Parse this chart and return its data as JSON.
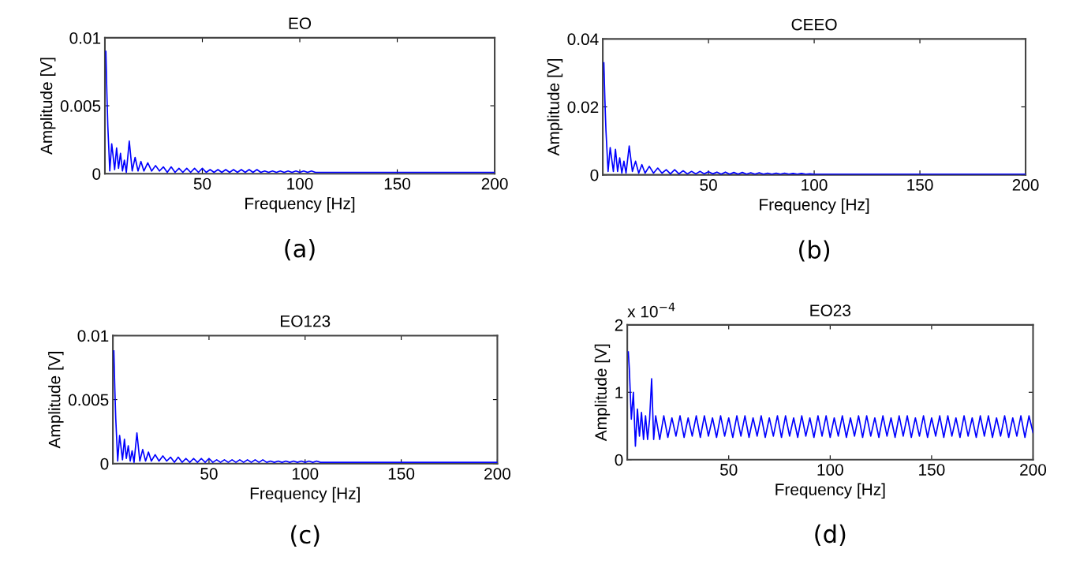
{
  "chart_data": [
    {
      "type": "line",
      "title": "EO",
      "xlabel": "Frequency [Hz]",
      "ylabel": "Amplitude [V]",
      "xlim": [
        0,
        200
      ],
      "xticks": [
        50,
        100,
        150,
        200
      ],
      "ylim": [
        0,
        0.01
      ],
      "yticks": [
        0,
        0.005,
        0.01
      ],
      "grid": false,
      "annotations": [
        "(a)"
      ],
      "series": [
        {
          "color": "#0000ff",
          "x": [
            0.5,
            1,
            1.5,
            2.5,
            3.5,
            5,
            6,
            7,
            8,
            9,
            10,
            11,
            12.5,
            14,
            15.5,
            17,
            18.5,
            20,
            22,
            24,
            26,
            28,
            30,
            32,
            34,
            36,
            38,
            40,
            42,
            44,
            46,
            48,
            50,
            52,
            54,
            56,
            58,
            60,
            62,
            64,
            66,
            68,
            70,
            72,
            74,
            76,
            78,
            80,
            82,
            84,
            86,
            88,
            90,
            92,
            94,
            96,
            98,
            100,
            102,
            104,
            106,
            108,
            110,
            120,
            150,
            200
          ],
          "values": [
            0.009,
            0.006,
            0.0035,
            0.0002,
            0.0022,
            0.0003,
            0.0019,
            0.0004,
            0.0015,
            0.0002,
            0.001,
            0.0001,
            0.0024,
            0.0002,
            0.0012,
            0.0002,
            0.0009,
            0.0002,
            0.0008,
            0.0002,
            0.0006,
            0.0002,
            0.0005,
            0.0001,
            0.0005,
            0.0001,
            0.0004,
            0.0001,
            0.0004,
            0.0001,
            0.0004,
            0.0001,
            0.0004,
            0.0001,
            0.0003,
            0.0001,
            0.0003,
            0.0001,
            0.0003,
            0.0001,
            0.0003,
            0.0001,
            0.0003,
            0.0001,
            0.0003,
            0.0001,
            0.0003,
            0.0001,
            0.0002,
            0.0001,
            0.0002,
            0.0001,
            0.0002,
            0.0001,
            0.0002,
            0.0001,
            0.0002,
            0.0001,
            0.0002,
            0.0001,
            0.0002,
            0.0001,
            0.0001,
            0.0001,
            0.0001,
            0.0001
          ]
        }
      ]
    },
    {
      "type": "line",
      "title": "CEEO",
      "xlabel": "Frequency [Hz]",
      "ylabel": "Amplitude [V]",
      "xlim": [
        0,
        200
      ],
      "xticks": [
        50,
        100,
        150,
        200
      ],
      "ylim": [
        0,
        0.04
      ],
      "yticks": [
        0,
        0.02,
        0.04
      ],
      "grid": false,
      "annotations": [
        "(b)"
      ],
      "series": [
        {
          "color": "#0000ff",
          "x": [
            0.5,
            1,
            1.5,
            2.5,
            3.5,
            5,
            6,
            7,
            8,
            9,
            10,
            11,
            12.5,
            14,
            15.5,
            17,
            18.5,
            20,
            22,
            24,
            26,
            28,
            30,
            32,
            34,
            36,
            38,
            40,
            42,
            44,
            46,
            48,
            50,
            52,
            54,
            56,
            58,
            60,
            62,
            64,
            66,
            68,
            70,
            72,
            74,
            76,
            78,
            80,
            82,
            84,
            86,
            88,
            90,
            92,
            94,
            96,
            98,
            100,
            120,
            150,
            200
          ],
          "values": [
            0.033,
            0.022,
            0.013,
            0.001,
            0.008,
            0.001,
            0.0075,
            0.001,
            0.005,
            0.0005,
            0.004,
            0.0005,
            0.0085,
            0.001,
            0.004,
            0.0005,
            0.003,
            0.0005,
            0.0025,
            0.0005,
            0.002,
            0.0005,
            0.0015,
            0.0003,
            0.0015,
            0.0003,
            0.0012,
            0.0003,
            0.001,
            0.0003,
            0.001,
            0.0003,
            0.0009,
            0.0003,
            0.0008,
            0.0002,
            0.0008,
            0.0002,
            0.0007,
            0.0002,
            0.0007,
            0.0002,
            0.0006,
            0.0002,
            0.0006,
            0.0002,
            0.0005,
            0.0002,
            0.0005,
            0.0002,
            0.0005,
            0.0002,
            0.0004,
            0.0002,
            0.0004,
            0.0002,
            0.0003,
            0.0002,
            0.0002,
            0.0002,
            0.0002
          ]
        }
      ]
    },
    {
      "type": "line",
      "title": "EO123",
      "xlabel": "Frequency [Hz]",
      "ylabel": "Amplitude [V]",
      "xlim": [
        0,
        200
      ],
      "xticks": [
        50,
        100,
        150,
        200
      ],
      "ylim": [
        0,
        0.01
      ],
      "yticks": [
        0,
        0.005,
        0.01
      ],
      "grid": false,
      "annotations": [
        "(c)"
      ],
      "series": [
        {
          "color": "#0000ff",
          "x": [
            0.5,
            1,
            1.5,
            2.5,
            3.5,
            5,
            6,
            7,
            8,
            9,
            10,
            11,
            12.5,
            14,
            15.5,
            17,
            18.5,
            20,
            22,
            24,
            26,
            28,
            30,
            32,
            34,
            36,
            38,
            40,
            42,
            44,
            46,
            48,
            50,
            52,
            54,
            56,
            58,
            60,
            62,
            64,
            66,
            68,
            70,
            72,
            74,
            76,
            78,
            80,
            82,
            84,
            86,
            88,
            90,
            92,
            94,
            96,
            98,
            100,
            102,
            104,
            106,
            108,
            110,
            120,
            150,
            200
          ],
          "values": [
            0.0088,
            0.0059,
            0.0035,
            0.0002,
            0.0022,
            0.0003,
            0.0019,
            0.0004,
            0.0014,
            0.0002,
            0.001,
            0.0001,
            0.0024,
            0.0002,
            0.0011,
            0.0002,
            0.0009,
            0.0002,
            0.0007,
            0.0002,
            0.0006,
            0.0002,
            0.0005,
            0.0001,
            0.0005,
            0.0001,
            0.0004,
            0.0001,
            0.0004,
            0.0001,
            0.0004,
            0.0001,
            0.0004,
            0.0001,
            0.0003,
            0.0001,
            0.0003,
            0.0001,
            0.0003,
            0.0001,
            0.0003,
            0.0001,
            0.0003,
            0.0001,
            0.0003,
            0.0001,
            0.0003,
            0.0001,
            0.0002,
            0.0001,
            0.0002,
            0.0001,
            0.0002,
            0.0001,
            0.0002,
            0.0001,
            0.0002,
            0.0001,
            0.0002,
            0.0001,
            0.0002,
            0.0001,
            0.0001,
            0.0001,
            0.0001,
            0.0001
          ]
        }
      ]
    },
    {
      "type": "line",
      "title": "EO23",
      "xlabel": "Frequency [Hz]",
      "ylabel": "Amplitude [V]",
      "xlim": [
        0,
        200
      ],
      "xticks": [
        50,
        100,
        150,
        200
      ],
      "ylim": [
        0,
        2
      ],
      "yticks": [
        0,
        1,
        2
      ],
      "grid": false,
      "annotations": [
        "x 10$^{−4}$",
        "(d)"
      ],
      "series": [
        {
          "color": "#0000ff",
          "x": [
            0.5,
            1,
            2,
            3,
            4,
            5,
            6,
            7,
            8,
            9,
            10,
            11,
            12,
            13,
            14,
            16,
            18,
            20,
            22,
            24,
            26,
            28,
            30,
            32,
            34,
            36,
            38,
            40,
            42,
            44,
            46,
            48,
            50,
            52,
            54,
            56,
            58,
            60,
            62,
            64,
            66,
            68,
            70,
            72,
            74,
            76,
            78,
            80,
            82,
            84,
            86,
            88,
            90,
            92,
            94,
            96,
            98,
            100,
            102,
            104,
            106,
            108,
            110,
            112,
            114,
            116,
            118,
            120,
            122,
            124,
            126,
            128,
            130,
            132,
            134,
            136,
            138,
            140,
            142,
            144,
            146,
            148,
            150,
            152,
            154,
            156,
            158,
            160,
            162,
            164,
            166,
            168,
            170,
            172,
            174,
            176,
            178,
            180,
            182,
            184,
            186,
            188,
            190,
            192,
            194,
            196,
            198,
            200
          ],
          "values": [
            1.6,
            1.35,
            0.6,
            1.0,
            0.2,
            0.75,
            0.35,
            0.7,
            0.3,
            0.65,
            0.3,
            0.6,
            1.2,
            0.3,
            0.65,
            0.3,
            0.65,
            0.33,
            0.62,
            0.35,
            0.65,
            0.33,
            0.62,
            0.35,
            0.65,
            0.33,
            0.65,
            0.35,
            0.62,
            0.33,
            0.65,
            0.35,
            0.62,
            0.33,
            0.65,
            0.35,
            0.65,
            0.33,
            0.62,
            0.35,
            0.65,
            0.33,
            0.62,
            0.35,
            0.65,
            0.33,
            0.65,
            0.35,
            0.62,
            0.33,
            0.65,
            0.35,
            0.62,
            0.33,
            0.65,
            0.35,
            0.65,
            0.33,
            0.62,
            0.35,
            0.65,
            0.33,
            0.62,
            0.35,
            0.65,
            0.33,
            0.65,
            0.35,
            0.62,
            0.33,
            0.65,
            0.35,
            0.62,
            0.33,
            0.65,
            0.35,
            0.65,
            0.33,
            0.62,
            0.35,
            0.65,
            0.33,
            0.62,
            0.35,
            0.65,
            0.33,
            0.65,
            0.35,
            0.62,
            0.33,
            0.65,
            0.35,
            0.62,
            0.33,
            0.65,
            0.35,
            0.65,
            0.33,
            0.62,
            0.35,
            0.65,
            0.33,
            0.62,
            0.35,
            0.65,
            0.33,
            0.65,
            0.4
          ]
        }
      ]
    }
  ]
}
